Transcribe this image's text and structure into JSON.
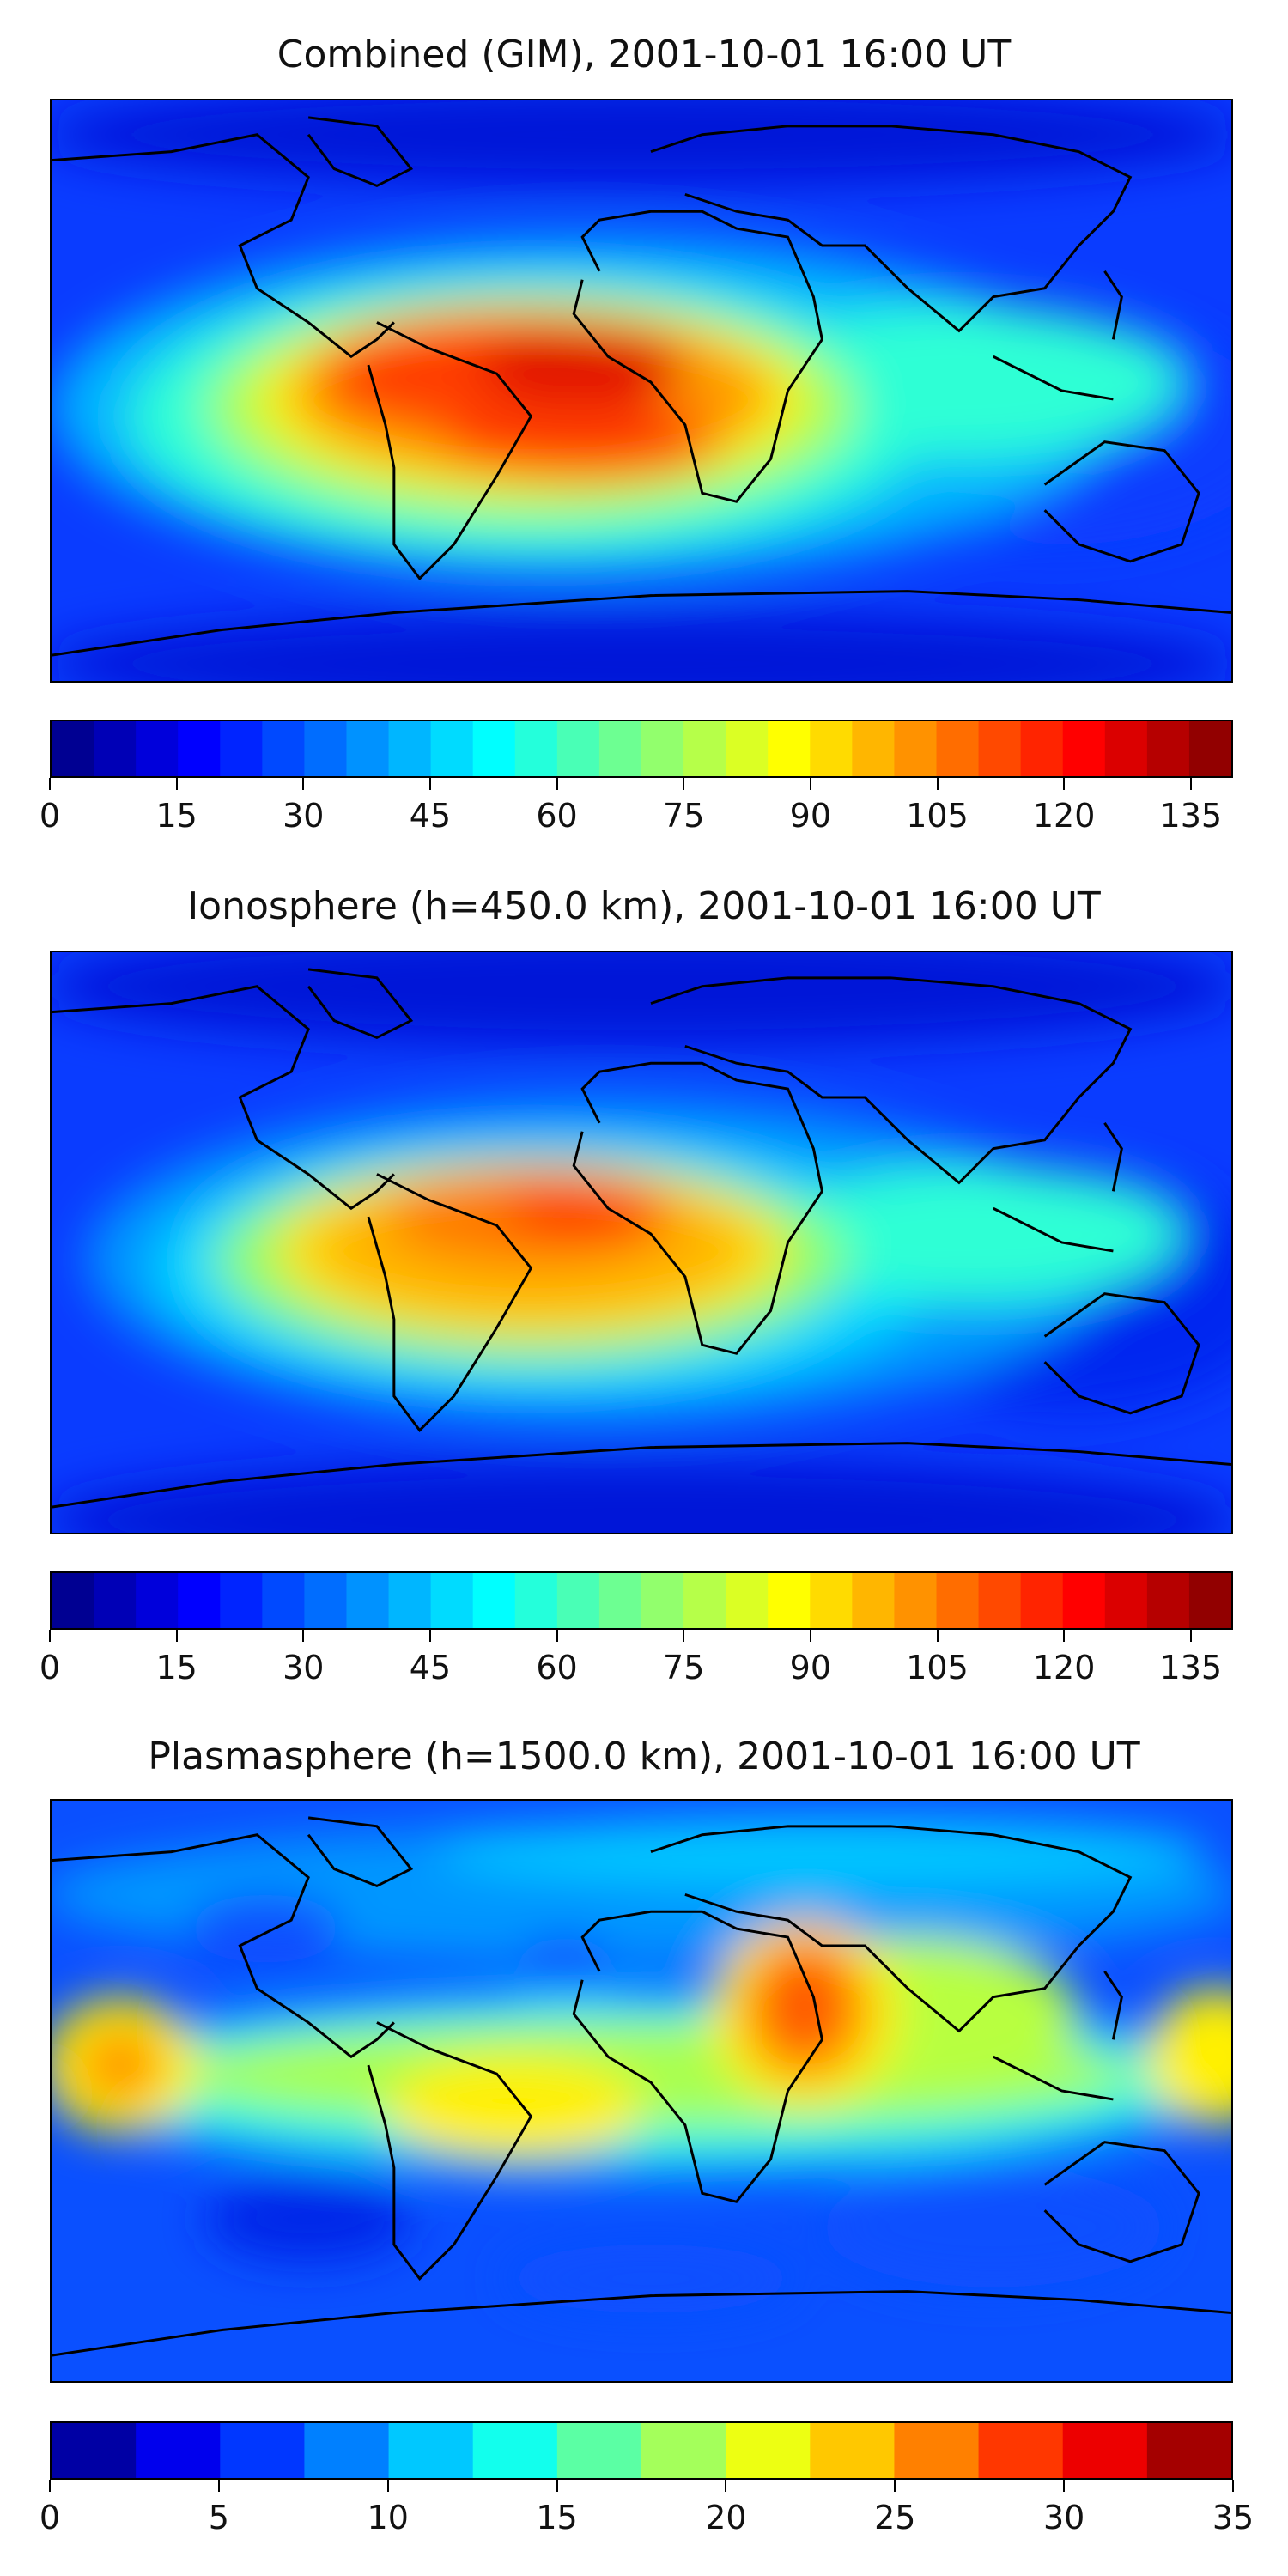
{
  "chart_data": [
    {
      "type": "heatmap",
      "title": "Combined (GIM), 2001-10-01 16:00 UT",
      "colorbar": {
        "min": 0,
        "max": 140,
        "step": 5,
        "ticks": [
          0,
          15,
          30,
          45,
          60,
          75,
          90,
          105,
          120,
          135
        ]
      },
      "colormap": "jet",
      "hotspots": [
        {
          "region": "northern South America / tropical Atlantic",
          "value": 125
        },
        {
          "region": "central Africa",
          "value": 110
        },
        {
          "region": "South America",
          "value": 115
        }
      ]
    },
    {
      "type": "heatmap",
      "title": "Ionosphere  (h=450.0 km), 2001-10-01 16:00 UT",
      "colorbar": {
        "min": 0,
        "max": 140,
        "step": 5,
        "ticks": [
          0,
          15,
          30,
          45,
          60,
          75,
          90,
          105,
          120,
          135
        ]
      },
      "colormap": "jet",
      "hotspots": [
        {
          "region": "northern South America / tropical Atlantic",
          "value": 110
        },
        {
          "region": "central Africa",
          "value": 100
        },
        {
          "region": "South America",
          "value": 105
        }
      ]
    },
    {
      "type": "heatmap",
      "title": "Plasmasphere (h=1500.0 km), 2001-10-01 16:00 UT",
      "colorbar": {
        "min": 0,
        "max": 35,
        "step": 2.5,
        "ticks": [
          0,
          5,
          10,
          15,
          20,
          25,
          30,
          35
        ]
      },
      "colormap": "jet",
      "hotspots": [
        {
          "region": "Horn of Africa / Arabia",
          "value": 31
        },
        {
          "region": "central Pacific",
          "value": 25
        },
        {
          "region": "South America",
          "value": 21
        }
      ]
    }
  ]
}
